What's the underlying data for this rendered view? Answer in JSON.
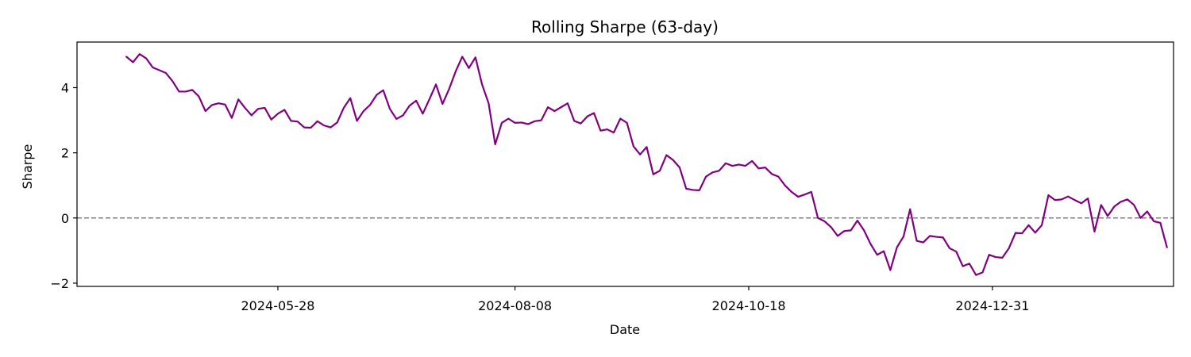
{
  "chart_data": {
    "type": "line",
    "title": "Rolling Sharpe (63-day)",
    "xlabel": "Date",
    "ylabel": "Sharpe",
    "x_axis": "date",
    "xlim": [
      "2024-03-28",
      "2025-02-24"
    ],
    "ylim": [
      -2.1,
      5.4
    ],
    "x_ticks": [
      "2024-05-28",
      "2024-08-08",
      "2024-10-18",
      "2024-12-31"
    ],
    "y_ticks": [
      -2,
      0,
      2,
      4
    ],
    "y_tick_labels": [
      "−2",
      "0",
      "2",
      "4"
    ],
    "grid": false,
    "legend": "none",
    "reference_lines": [
      {
        "y": 0,
        "style": "dashed",
        "color": "#808080"
      }
    ],
    "series": [
      {
        "color": "#800080",
        "points": [
          [
            "2024-04-12",
            4.95
          ],
          [
            "2024-04-14",
            4.78
          ],
          [
            "2024-04-16",
            5.03
          ],
          [
            "2024-04-18",
            4.9
          ],
          [
            "2024-04-20",
            4.62
          ],
          [
            "2024-04-24",
            4.45
          ],
          [
            "2024-04-26",
            4.2
          ],
          [
            "2024-04-28",
            3.88
          ],
          [
            "2024-04-30",
            3.88
          ],
          [
            "2024-05-02",
            3.93
          ],
          [
            "2024-05-04",
            3.73
          ],
          [
            "2024-05-06",
            3.28
          ],
          [
            "2024-05-08",
            3.47
          ],
          [
            "2024-05-10",
            3.52
          ],
          [
            "2024-05-12",
            3.48
          ],
          [
            "2024-05-14",
            3.07
          ],
          [
            "2024-05-16",
            3.64
          ],
          [
            "2024-05-18",
            3.38
          ],
          [
            "2024-05-20",
            3.15
          ],
          [
            "2024-05-22",
            3.35
          ],
          [
            "2024-05-24",
            3.38
          ],
          [
            "2024-05-26",
            3.02
          ],
          [
            "2024-05-28",
            3.2
          ],
          [
            "2024-05-30",
            3.32
          ],
          [
            "2024-06-01",
            2.98
          ],
          [
            "2024-06-03",
            2.96
          ],
          [
            "2024-06-05",
            2.78
          ],
          [
            "2024-06-07",
            2.77
          ],
          [
            "2024-06-09",
            2.97
          ],
          [
            "2024-06-11",
            2.84
          ],
          [
            "2024-06-13",
            2.78
          ],
          [
            "2024-06-15",
            2.93
          ],
          [
            "2024-06-17",
            3.38
          ],
          [
            "2024-06-19",
            3.68
          ],
          [
            "2024-06-21",
            2.98
          ],
          [
            "2024-06-23",
            3.28
          ],
          [
            "2024-06-25",
            3.47
          ],
          [
            "2024-06-27",
            3.78
          ],
          [
            "2024-06-29",
            3.92
          ],
          [
            "2024-07-01",
            3.35
          ],
          [
            "2024-07-03",
            3.04
          ],
          [
            "2024-07-05",
            3.15
          ],
          [
            "2024-07-07",
            3.45
          ],
          [
            "2024-07-09",
            3.6
          ],
          [
            "2024-07-11",
            3.2
          ],
          [
            "2024-07-13",
            3.64
          ],
          [
            "2024-07-15",
            4.1
          ],
          [
            "2024-07-17",
            3.5
          ],
          [
            "2024-07-19",
            3.96
          ],
          [
            "2024-07-21",
            4.5
          ],
          [
            "2024-07-23",
            4.95
          ],
          [
            "2024-07-25",
            4.6
          ],
          [
            "2024-07-27",
            4.93
          ],
          [
            "2024-07-29",
            4.1
          ],
          [
            "2024-07-31",
            3.52
          ],
          [
            "2024-08-02",
            2.26
          ],
          [
            "2024-08-04",
            2.92
          ],
          [
            "2024-08-06",
            3.05
          ],
          [
            "2024-08-08",
            2.92
          ],
          [
            "2024-08-10",
            2.93
          ],
          [
            "2024-08-12",
            2.88
          ],
          [
            "2024-08-14",
            2.97
          ],
          [
            "2024-08-16",
            3.0
          ],
          [
            "2024-08-18",
            3.4
          ],
          [
            "2024-08-20",
            3.28
          ],
          [
            "2024-08-22",
            3.4
          ],
          [
            "2024-08-24",
            3.52
          ],
          [
            "2024-08-26",
            2.98
          ],
          [
            "2024-08-28",
            2.9
          ],
          [
            "2024-08-30",
            3.12
          ],
          [
            "2024-09-01",
            3.22
          ],
          [
            "2024-09-03",
            2.68
          ],
          [
            "2024-09-05",
            2.72
          ],
          [
            "2024-09-07",
            2.62
          ],
          [
            "2024-09-09",
            3.05
          ],
          [
            "2024-09-11",
            2.92
          ],
          [
            "2024-09-13",
            2.2
          ],
          [
            "2024-09-15",
            1.95
          ],
          [
            "2024-09-17",
            2.18
          ],
          [
            "2024-09-19",
            1.34
          ],
          [
            "2024-09-21",
            1.45
          ],
          [
            "2024-09-23",
            1.93
          ],
          [
            "2024-09-25",
            1.78
          ],
          [
            "2024-09-27",
            1.55
          ],
          [
            "2024-09-29",
            0.9
          ],
          [
            "2024-10-01",
            0.86
          ],
          [
            "2024-10-03",
            0.85
          ],
          [
            "2024-10-05",
            1.27
          ],
          [
            "2024-10-07",
            1.4
          ],
          [
            "2024-10-09",
            1.45
          ],
          [
            "2024-10-11",
            1.68
          ],
          [
            "2024-10-13",
            1.6
          ],
          [
            "2024-10-15",
            1.64
          ],
          [
            "2024-10-17",
            1.6
          ],
          [
            "2024-10-19",
            1.75
          ],
          [
            "2024-10-21",
            1.52
          ],
          [
            "2024-10-23",
            1.55
          ],
          [
            "2024-10-25",
            1.35
          ],
          [
            "2024-10-27",
            1.27
          ],
          [
            "2024-10-29",
            1.0
          ],
          [
            "2024-10-31",
            0.8
          ],
          [
            "2024-11-02",
            0.65
          ],
          [
            "2024-11-04",
            0.72
          ],
          [
            "2024-11-06",
            0.8
          ],
          [
            "2024-11-08",
            0.0
          ],
          [
            "2024-11-10",
            -0.1
          ],
          [
            "2024-11-12",
            -0.28
          ],
          [
            "2024-11-14",
            -0.55
          ],
          [
            "2024-11-16",
            -0.4
          ],
          [
            "2024-11-18",
            -0.38
          ],
          [
            "2024-11-20",
            -0.08
          ],
          [
            "2024-11-22",
            -0.38
          ],
          [
            "2024-11-24",
            -0.8
          ],
          [
            "2024-11-26",
            -1.13
          ],
          [
            "2024-11-28",
            -1.02
          ],
          [
            "2024-11-30",
            -1.6
          ],
          [
            "2024-12-02",
            -0.9
          ],
          [
            "2024-12-04",
            -0.57
          ],
          [
            "2024-12-06",
            0.27
          ],
          [
            "2024-12-08",
            -0.7
          ],
          [
            "2024-12-10",
            -0.75
          ],
          [
            "2024-12-12",
            -0.55
          ],
          [
            "2024-12-14",
            -0.58
          ],
          [
            "2024-12-16",
            -0.6
          ],
          [
            "2024-12-18",
            -0.93
          ],
          [
            "2024-12-20",
            -1.03
          ],
          [
            "2024-12-22",
            -1.48
          ],
          [
            "2024-12-24",
            -1.4
          ],
          [
            "2024-12-26",
            -1.75
          ],
          [
            "2024-12-28",
            -1.67
          ],
          [
            "2024-12-30",
            -1.13
          ],
          [
            "2025-01-01",
            -1.2
          ],
          [
            "2025-01-03",
            -1.22
          ],
          [
            "2025-01-05",
            -0.93
          ],
          [
            "2025-01-07",
            -0.46
          ],
          [
            "2025-01-09",
            -0.47
          ],
          [
            "2025-01-11",
            -0.22
          ],
          [
            "2025-01-13",
            -0.45
          ],
          [
            "2025-01-15",
            -0.22
          ],
          [
            "2025-01-17",
            0.7
          ],
          [
            "2025-01-19",
            0.55
          ],
          [
            "2025-01-21",
            0.57
          ],
          [
            "2025-01-23",
            0.66
          ],
          [
            "2025-01-25",
            0.55
          ],
          [
            "2025-01-27",
            0.45
          ],
          [
            "2025-01-29",
            0.6
          ],
          [
            "2025-01-31",
            -0.42
          ],
          [
            "2025-02-02",
            0.4
          ],
          [
            "2025-02-04",
            0.06
          ],
          [
            "2025-02-06",
            0.35
          ],
          [
            "2025-02-08",
            0.5
          ],
          [
            "2025-02-10",
            0.57
          ],
          [
            "2025-02-12",
            0.4
          ],
          [
            "2025-02-14",
            0.0
          ],
          [
            "2025-02-16",
            0.2
          ],
          [
            "2025-02-18",
            -0.1
          ],
          [
            "2025-02-20",
            -0.15
          ],
          [
            "2025-02-22",
            -0.9
          ]
        ]
      }
    ]
  }
}
